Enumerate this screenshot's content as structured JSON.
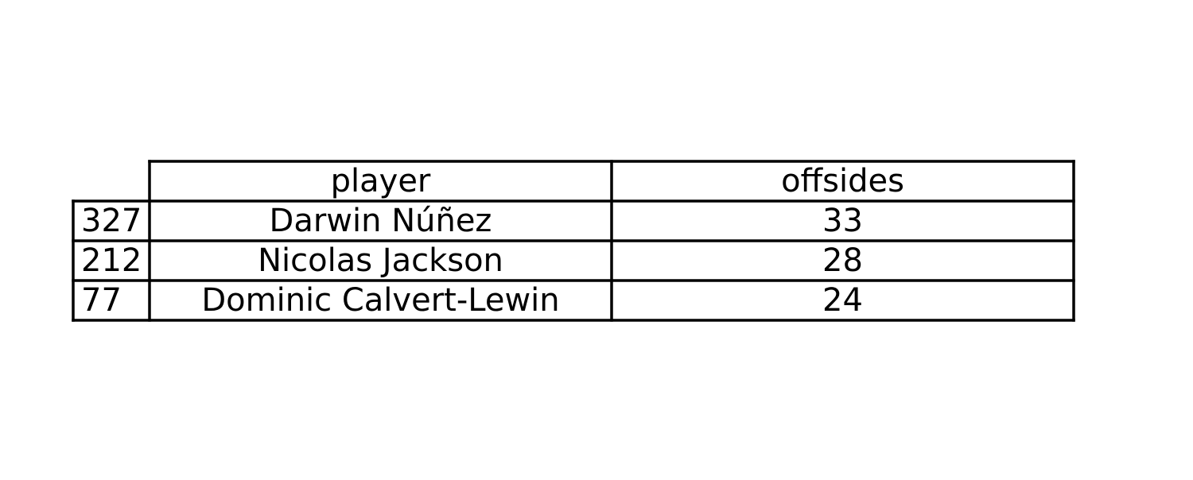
{
  "chart_data": {
    "type": "table",
    "columns": [
      "player",
      "offsides"
    ],
    "rows": [
      {
        "index": "327",
        "cells": [
          "Darwin Núñez",
          "33"
        ]
      },
      {
        "index": "212",
        "cells": [
          "Nicolas Jackson",
          "28"
        ]
      },
      {
        "index": "77",
        "cells": [
          "Dominic Calvert-Lewin",
          "24"
        ]
      }
    ]
  }
}
